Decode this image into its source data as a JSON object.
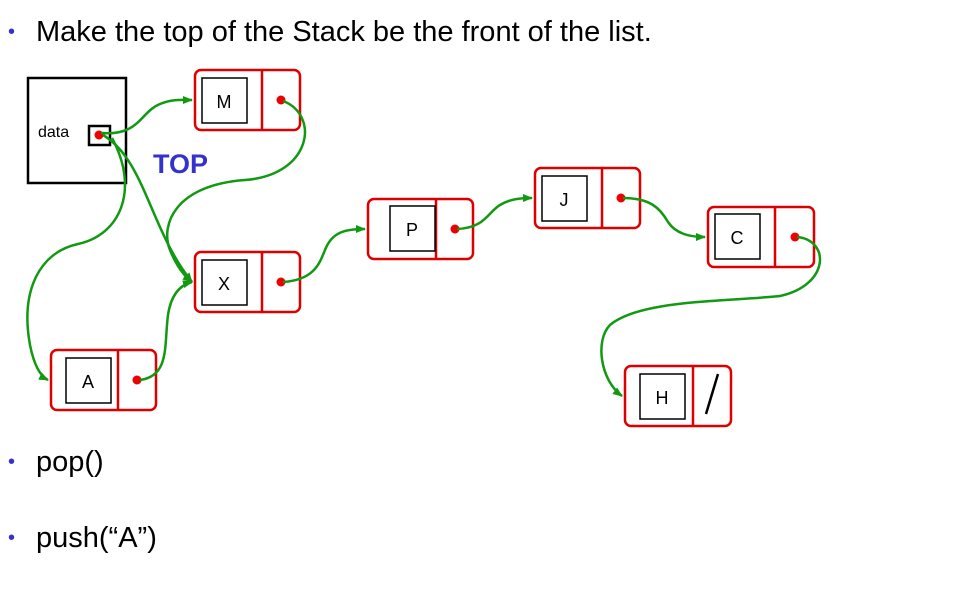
{
  "bullets": [
    "Make the top of the Stack be the front of the list.",
    "pop()",
    "push(“A”)"
  ],
  "diagram": {
    "data_label": "data",
    "top_label": "TOP",
    "nodes": {
      "M": "M",
      "X": "X",
      "A": "A",
      "P": "P",
      "J": "J",
      "C": "C",
      "H": "H"
    },
    "colors": {
      "node_border": "#dd0000",
      "pointer_dot": "#ee0000",
      "arrow": "#119911",
      "top_label": "#3333cc"
    }
  }
}
